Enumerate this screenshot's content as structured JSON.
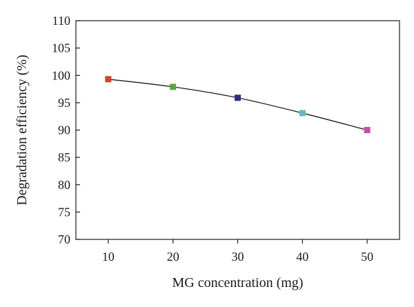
{
  "chart_data": {
    "type": "line",
    "title": "",
    "xlabel": "MG concentration (mg)",
    "ylabel": "Degradation efficiency (%)",
    "x": [
      10,
      20,
      30,
      40,
      50
    ],
    "xticks": [
      10,
      20,
      30,
      40,
      50
    ],
    "xlim": [
      5,
      55
    ],
    "yticks": [
      70,
      75,
      80,
      85,
      90,
      95,
      100,
      105,
      110
    ],
    "ylim": [
      70,
      110
    ],
    "grid": false,
    "legend": "none",
    "series": [
      {
        "values": [
          99.3,
          97.9,
          95.9,
          93.1,
          90.0
        ],
        "line_color": "#1a1a1a",
        "marker": "square",
        "marker_colors": [
          "#d9401f",
          "#5aa83c",
          "#2e2f86",
          "#5dbfc4",
          "#c94da8"
        ]
      }
    ]
  }
}
